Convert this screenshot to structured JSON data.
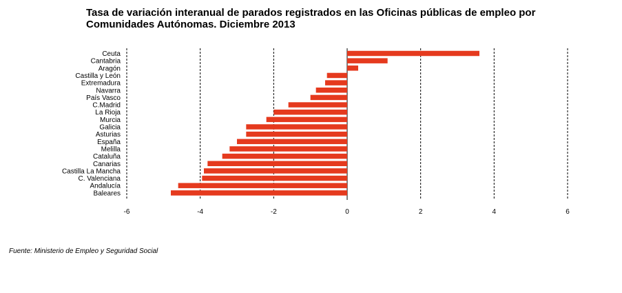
{
  "chart_data": {
    "type": "bar",
    "orientation": "horizontal",
    "title": "Tasa de variación interanual de parados registrados en las Oficinas públicas de empleo por Comunidades Autónomas.  Diciembre 2013",
    "categories": [
      "Ceuta",
      "Cantabria",
      "Aragón",
      "Castilla y León",
      "Extremadura",
      "Navarra",
      "País Vasco",
      "C.Madrid",
      "La Rioja",
      "Murcia",
      "Galicia",
      "Asturias",
      "España",
      "Melilla",
      "Cataluña",
      "Canarias",
      "Castilla La Mancha",
      "C. Valenciana",
      "Andalucía",
      "Baleares"
    ],
    "values": [
      3.6,
      1.1,
      0.3,
      -0.55,
      -0.6,
      -0.85,
      -1.0,
      -1.6,
      -2.0,
      -2.2,
      -2.75,
      -2.75,
      -3.0,
      -3.2,
      -3.4,
      -3.8,
      -3.9,
      -3.95,
      -4.6,
      -4.8
    ],
    "xlim": [
      -6,
      6
    ],
    "xticks": [
      "-6",
      "-4",
      "-2",
      "0",
      "2",
      "4",
      "6"
    ],
    "grid": "vertical dashed at major ticks",
    "bar_color": "#e53a1e",
    "source": "Fuente: Ministerio de Empleo y Seguridad Social"
  }
}
